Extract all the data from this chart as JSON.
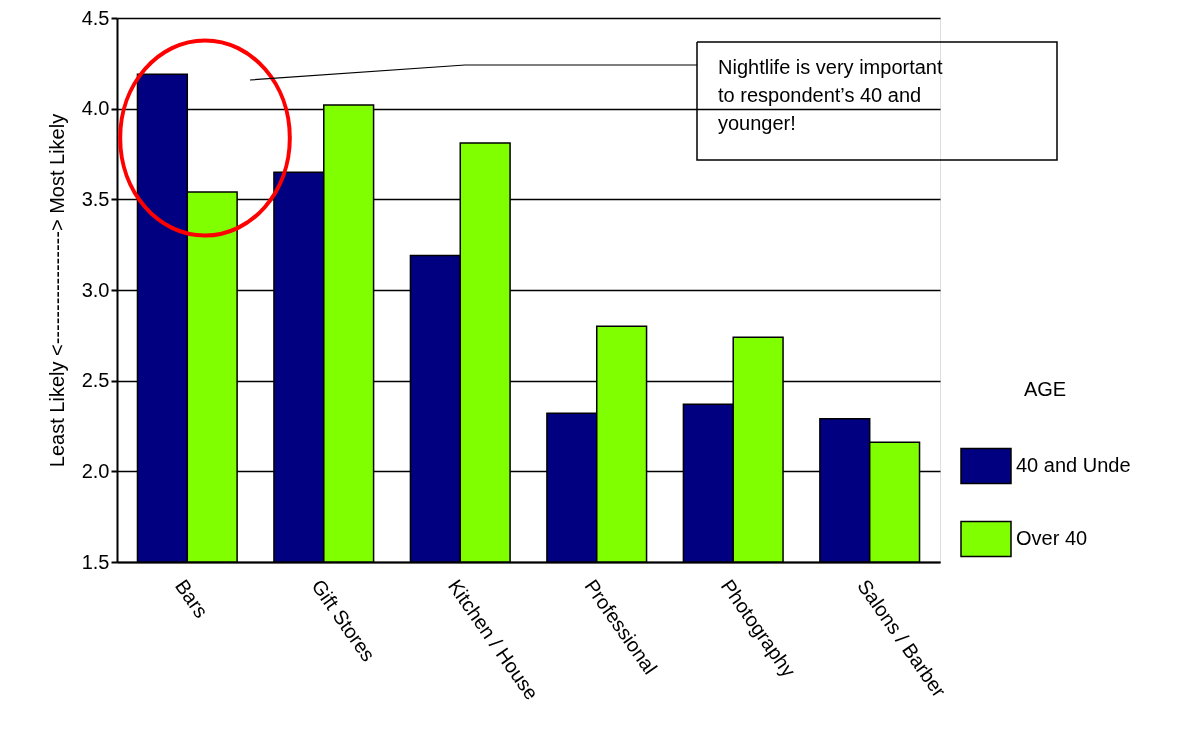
{
  "chart_data": {
    "type": "bar",
    "categories": [
      "Bars",
      "Gift Stores",
      "Kitchen / House",
      "Professional",
      "Photography",
      "Salons / Barber"
    ],
    "series": [
      {
        "name": "40 and Unde",
        "color": "#000080",
        "values": [
          4.19,
          3.65,
          3.19,
          2.32,
          2.37,
          2.29
        ]
      },
      {
        "name": "Over 40",
        "color": "#80ff00",
        "values": [
          3.54,
          4.02,
          3.81,
          2.8,
          2.74,
          2.16
        ]
      }
    ],
    "ylabel": "Least Likely  <-----------------> Most Likely",
    "legend_title": "AGE",
    "ylim": [
      1.5,
      4.5
    ],
    "yticks": [
      1.5,
      {
        "value": 2,
        "label": "2.0"
      },
      2.5,
      {
        "value": 3,
        "label": "3.0"
      },
      3.5,
      {
        "value": 4,
        "label": "4.0"
      },
      4.5
    ],
    "grid": "y",
    "legend": "right",
    "annotations": [
      "Nightlife is very important\nto respondent’s 40 and\nyounger!"
    ]
  }
}
